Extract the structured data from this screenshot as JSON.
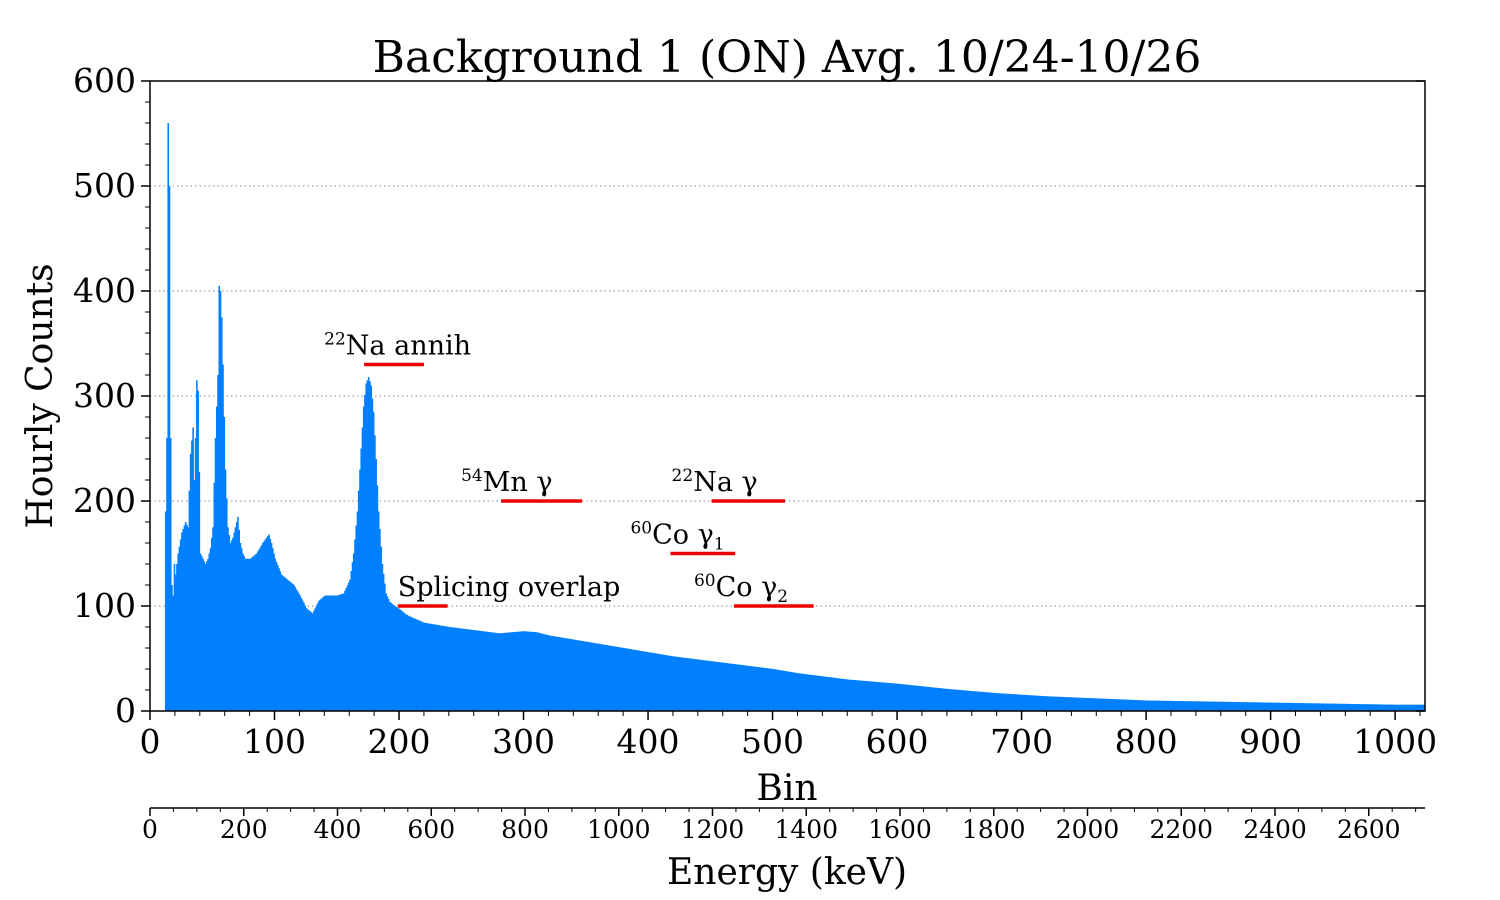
{
  "chart_data": {
    "type": "bar",
    "title": "Background 1 (ON) Avg. 10/24-10/26",
    "xlabel": "Bin",
    "ylabel": "Hourly Counts",
    "secondary_xlabel": "Energy (keV)",
    "xlim": [
      0,
      1024
    ],
    "ylim": [
      0,
      600
    ],
    "secondary_xlim": [
      0,
      2720
    ],
    "grid": "horizontal dotted",
    "bar_color": "#0080ff",
    "marker_color": "#ee0000",
    "x_ticks": [
      0,
      100,
      200,
      300,
      400,
      500,
      600,
      700,
      800,
      900,
      1000
    ],
    "y_ticks": [
      0,
      100,
      200,
      300,
      400,
      500,
      600
    ],
    "energy_ticks": [
      0,
      200,
      400,
      600,
      800,
      1000,
      1200,
      1400,
      1600,
      1800,
      2000,
      2200,
      2400,
      2600
    ],
    "spectrum_keypoints": {
      "bins": [
        12,
        13,
        14,
        15,
        16,
        17,
        18,
        19,
        20,
        22,
        25,
        28,
        30,
        32,
        34,
        35,
        36,
        37,
        38,
        40,
        42,
        44,
        46,
        48,
        50,
        52,
        54,
        55,
        56,
        57,
        58,
        60,
        62,
        64,
        66,
        68,
        70,
        72,
        74,
        76,
        80,
        85,
        90,
        93,
        95,
        97,
        100,
        105,
        110,
        115,
        120,
        125,
        130,
        135,
        140,
        145,
        150,
        155,
        160,
        163,
        166,
        169,
        171,
        173,
        175,
        177,
        179,
        181,
        183,
        186,
        189,
        192,
        196,
        200,
        205,
        210,
        220,
        240,
        260,
        280,
        300,
        310,
        320,
        340,
        360,
        380,
        400,
        420,
        440,
        460,
        480,
        500,
        520,
        540,
        560,
        600,
        640,
        680,
        720,
        760,
        800,
        850,
        900,
        950,
        1000,
        1024
      ],
      "counts": [
        190,
        260,
        560,
        500,
        260,
        120,
        110,
        140,
        130,
        150,
        170,
        180,
        175,
        245,
        270,
        220,
        260,
        315,
        305,
        150,
        145,
        140,
        145,
        155,
        175,
        260,
        320,
        405,
        400,
        375,
        330,
        230,
        175,
        160,
        165,
        175,
        185,
        160,
        150,
        145,
        145,
        150,
        160,
        165,
        168,
        160,
        145,
        130,
        125,
        120,
        110,
        98,
        93,
        105,
        110,
        110,
        110,
        112,
        125,
        150,
        190,
        250,
        290,
        312,
        318,
        310,
        285,
        240,
        190,
        140,
        112,
        104,
        100,
        97,
        92,
        89,
        84,
        80,
        77,
        74,
        76,
        75,
        72,
        68,
        64,
        60,
        56,
        52,
        49,
        46,
        43,
        40,
        36,
        33,
        30,
        26,
        21,
        17,
        14,
        12,
        10,
        9,
        8,
        7,
        6,
        6
      ]
    },
    "annotations": [
      {
        "sup": "22",
        "label": "Na annih",
        "bin_start": 172,
        "bin_end": 220,
        "y": 330
      },
      {
        "sup": "54",
        "label": "Mn γ",
        "bin_start": 282,
        "bin_end": 347,
        "y": 200
      },
      {
        "sup": "22",
        "label": "Na γ",
        "bin_start": 451,
        "bin_end": 510,
        "y": 200
      },
      {
        "sup": "60",
        "label": "Co γ",
        "sub": "1",
        "bin_start": 418,
        "bin_end": 470,
        "y": 150
      },
      {
        "sup": "60",
        "label": "Co γ",
        "sub": "2",
        "bin_start": 469,
        "bin_end": 533,
        "y": 100
      },
      {
        "sup": "",
        "label": "Splicing overlap",
        "bin_start": 199,
        "bin_end": 239,
        "y": 100
      }
    ]
  }
}
